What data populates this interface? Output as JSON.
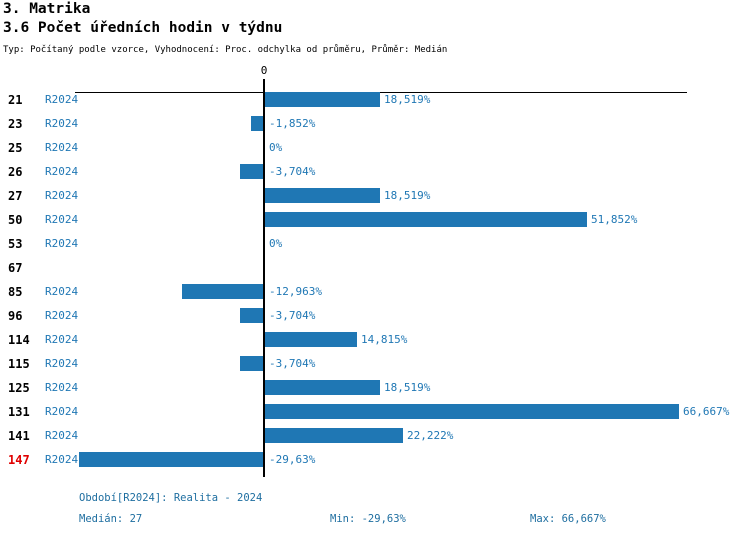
{
  "header": {
    "section_title": "3. Matrika",
    "chart_title": "3.6 Počet úředních hodin v týdnu",
    "meta_line": "Typ: Počítaný podle vzorce, Vyhodnocení: Proc. odchylka od průměru, Průměr: Medián"
  },
  "footer": {
    "period_line": "Období[R2024]: Realita - 2024",
    "median_label": "Medián: 27",
    "min_label": "Min: -29,63%",
    "max_label": "Max: 66,667%"
  },
  "colors": {
    "bar_blue": "#1f77b4",
    "text_blue": "#1f77b4",
    "footer_teal": "#1e6ea0",
    "highlight_red": "#e00000",
    "axis_black": "#000000"
  },
  "chart_data": {
    "type": "bar",
    "orientation": "horizontal",
    "title": "3.6 Počet úředních hodin v týdnu",
    "unit": "%",
    "axis_zero_label": "0",
    "xlim": [
      -30.5,
      68
    ],
    "grid": false,
    "series_name": "R2024",
    "median": 27,
    "min": -29.63,
    "max": 66.667,
    "rows": [
      {
        "category": "21",
        "period": "R2024",
        "value": 18.519,
        "label": "18,519%",
        "highlight": false
      },
      {
        "category": "23",
        "period": "R2024",
        "value": -1.852,
        "label": "-1,852%",
        "highlight": false
      },
      {
        "category": "25",
        "period": "R2024",
        "value": 0,
        "label": "0%",
        "highlight": false
      },
      {
        "category": "26",
        "period": "R2024",
        "value": -3.704,
        "label": "-3,704%",
        "highlight": false
      },
      {
        "category": "27",
        "period": "R2024",
        "value": 18.519,
        "label": "18,519%",
        "highlight": false
      },
      {
        "category": "50",
        "period": "R2024",
        "value": 51.852,
        "label": "51,852%",
        "highlight": false
      },
      {
        "category": "53",
        "period": "R2024",
        "value": 0,
        "label": "0%",
        "highlight": false
      },
      {
        "category": "67",
        "period": null,
        "value": null,
        "label": null,
        "highlight": false
      },
      {
        "category": "85",
        "period": "R2024",
        "value": -12.963,
        "label": "-12,963%",
        "highlight": false
      },
      {
        "category": "96",
        "period": "R2024",
        "value": -3.704,
        "label": "-3,704%",
        "highlight": false
      },
      {
        "category": "114",
        "period": "R2024",
        "value": 14.815,
        "label": "14,815%",
        "highlight": false
      },
      {
        "category": "115",
        "period": "R2024",
        "value": -3.704,
        "label": "-3,704%",
        "highlight": false
      },
      {
        "category": "125",
        "period": "R2024",
        "value": 18.519,
        "label": "18,519%",
        "highlight": false
      },
      {
        "category": "131",
        "period": "R2024",
        "value": 66.667,
        "label": "66,667%",
        "highlight": false
      },
      {
        "category": "141",
        "period": "R2024",
        "value": 22.222,
        "label": "22,222%",
        "highlight": false
      },
      {
        "category": "147",
        "period": "R2024",
        "value": -29.63,
        "label": "-29,63%",
        "highlight": true
      }
    ]
  }
}
